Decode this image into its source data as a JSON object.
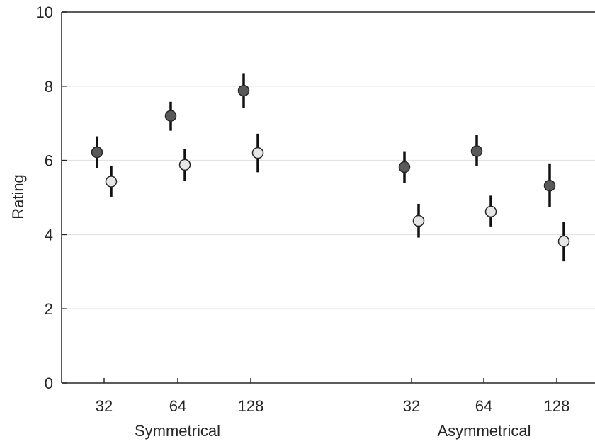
{
  "chart_data": {
    "type": "scatter",
    "title": "",
    "xlabel": "",
    "ylabel": "Rating",
    "ylim": [
      0,
      10
    ],
    "yticks": [
      "0",
      "2",
      "4",
      "6",
      "8",
      "10"
    ],
    "grid": "horizontal",
    "groups": [
      {
        "label": "Symmetrical",
        "categories": [
          "32",
          "64",
          "128"
        ],
        "dark": [
          {
            "mean": 6.22,
            "low": 5.8,
            "high": 6.65
          },
          {
            "mean": 7.2,
            "low": 6.8,
            "high": 7.58
          },
          {
            "mean": 7.88,
            "low": 7.42,
            "high": 8.35
          }
        ],
        "light": [
          {
            "mean": 5.43,
            "low": 5.02,
            "high": 5.86
          },
          {
            "mean": 5.88,
            "low": 5.45,
            "high": 6.3
          },
          {
            "mean": 6.2,
            "low": 5.68,
            "high": 6.72
          }
        ]
      },
      {
        "label": "Asymmetrical",
        "categories": [
          "32",
          "64",
          "128"
        ],
        "dark": [
          {
            "mean": 5.82,
            "low": 5.4,
            "high": 6.23
          },
          {
            "mean": 6.25,
            "low": 5.84,
            "high": 6.68
          },
          {
            "mean": 5.32,
            "low": 4.75,
            "high": 5.92
          }
        ],
        "light": [
          {
            "mean": 4.37,
            "low": 3.92,
            "high": 4.83
          },
          {
            "mean": 4.62,
            "low": 4.22,
            "high": 5.05
          },
          {
            "mean": 3.82,
            "low": 3.28,
            "high": 4.35
          }
        ]
      }
    ],
    "colors": {
      "dark_marker": "#595959",
      "light_marker": "#e6e6e6",
      "marker_edge": "#262626",
      "error_bar": "#111111",
      "grid": "#e3e3e3",
      "axis": "#262626"
    }
  }
}
